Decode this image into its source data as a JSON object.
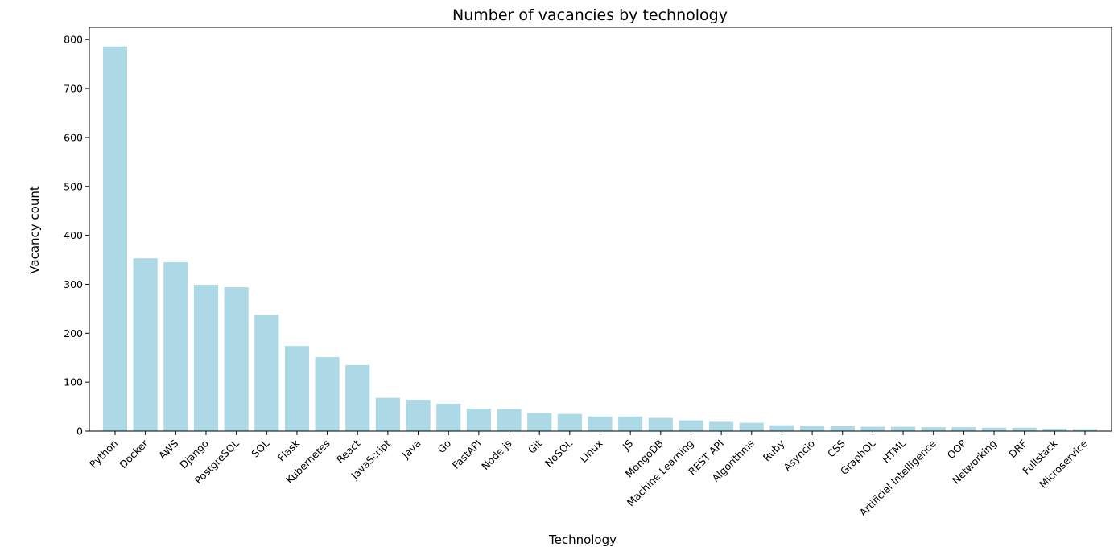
{
  "chart_data": {
    "type": "bar",
    "title": "Number of vacancies by technology",
    "xlabel": "Technology",
    "ylabel": "Vacancy count",
    "categories": [
      "Python",
      "Docker",
      "AWS",
      "Django",
      "PostgreSQL",
      "SQL",
      "Flask",
      "Kubernetes",
      "React",
      "JavaScript",
      "Java",
      "Go",
      "FastAPI",
      "Node.js",
      "Git",
      "NoSQL",
      "Linux",
      "JS",
      "MongoDB",
      "Machine Learning",
      "REST API",
      "Algorithms",
      "Ruby",
      "Asyncio",
      "CSS",
      "GraphQL",
      "HTML",
      "Artificial Intelligence",
      "OOP",
      "Networking",
      "DRF",
      "Fullstack",
      "Microservice"
    ],
    "values": [
      786,
      353,
      345,
      299,
      294,
      238,
      174,
      151,
      135,
      68,
      64,
      56,
      46,
      45,
      37,
      35,
      30,
      30,
      27,
      22,
      19,
      17,
      12,
      11,
      10,
      9,
      9,
      8,
      8,
      7,
      7,
      5,
      4
    ],
    "ylim": [
      0,
      825
    ],
    "yticks": [
      0,
      100,
      200,
      300,
      400,
      500,
      600,
      700,
      800
    ],
    "bar_color": "#add8e6",
    "grid": false,
    "legend": "none"
  }
}
